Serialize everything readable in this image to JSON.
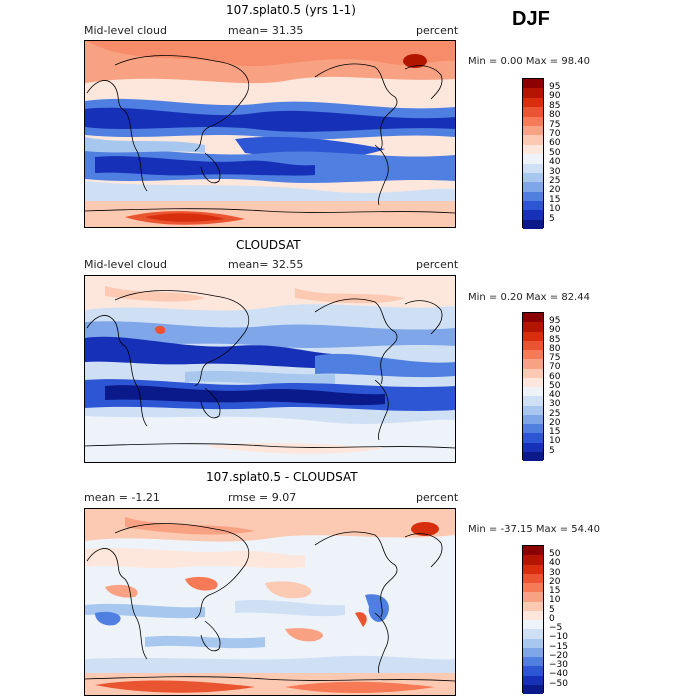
{
  "season": "DJF",
  "panels": [
    {
      "title": "107.splat0.5 (yrs 1-1)",
      "left_label": "Mid-level cloud",
      "center_label": "mean=  31.35",
      "units": "percent",
      "min": "0.00",
      "max": "98.40",
      "minmax_text": "Min =    0.00 Max =  98.40",
      "colorbar_labels": [
        "95",
        "90",
        "85",
        "80",
        "75",
        "70",
        "60",
        "50",
        "40",
        "30",
        "25",
        "20",
        "15",
        "10",
        "5"
      ],
      "colorbar_colors": [
        "#8b0000",
        "#b31600",
        "#d72e0e",
        "#ea5531",
        "#f57a55",
        "#f9a283",
        "#fcc9b3",
        "#fde7dc",
        "#eef3fa",
        "#cfe0f5",
        "#a8c7ef",
        "#7ea6e8",
        "#4f7fe0",
        "#2d56d4",
        "#1630b8",
        "#0a1a8a"
      ]
    },
    {
      "title": "CLOUDSAT",
      "left_label": "Mid-level cloud",
      "center_label": "mean=  32.55",
      "units": "percent",
      "min": "0.20",
      "max": "82.44",
      "minmax_text": "Min =    0.20 Max =  82.44",
      "colorbar_labels": [
        "95",
        "90",
        "85",
        "80",
        "75",
        "70",
        "60",
        "50",
        "40",
        "30",
        "25",
        "20",
        "15",
        "10",
        "5"
      ],
      "colorbar_colors": [
        "#8b0000",
        "#b31600",
        "#d72e0e",
        "#ea5531",
        "#f57a55",
        "#f9a283",
        "#fcc9b3",
        "#fde7dc",
        "#eef3fa",
        "#cfe0f5",
        "#a8c7ef",
        "#7ea6e8",
        "#4f7fe0",
        "#2d56d4",
        "#1630b8",
        "#0a1a8a"
      ]
    },
    {
      "title": "107.splat0.5 - CLOUDSAT",
      "left_label": "mean =  -1.21",
      "center_label": "rmse =   9.07",
      "units": "percent",
      "min": "-37.15",
      "max": "54.40",
      "minmax_text": "Min = -37.15 Max =  54.40",
      "colorbar_labels": [
        "50",
        "40",
        "30",
        "20",
        "15",
        "10",
        "5",
        "0",
        "−5",
        "−10",
        "−15",
        "−20",
        "−30",
        "−40",
        "−50"
      ],
      "colorbar_colors": [
        "#8b0000",
        "#b31600",
        "#d72e0e",
        "#ea5531",
        "#f57a55",
        "#f9a283",
        "#fcc9b3",
        "#fde7dc",
        "#eef3fa",
        "#cfe0f5",
        "#a8c7ef",
        "#7ea6e8",
        "#4f7fe0",
        "#2d56d4",
        "#1630b8",
        "#0a1a8a"
      ]
    }
  ]
}
